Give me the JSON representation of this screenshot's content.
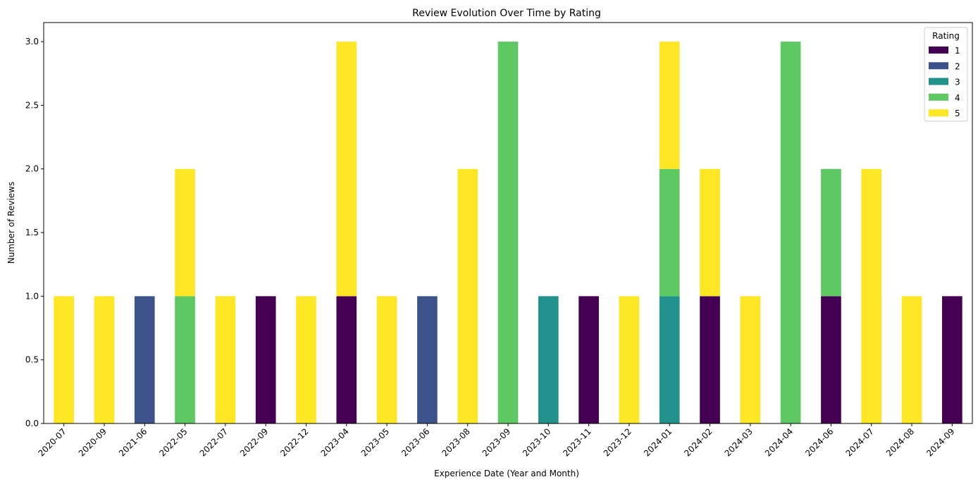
{
  "chart_data": {
    "type": "bar",
    "stacked": true,
    "title": "Review Evolution Over Time by Rating",
    "xlabel": "Experience Date (Year and Month)",
    "ylabel": "Number of Reviews",
    "ylim": [
      0,
      3.15
    ],
    "yticks": [
      "0.0",
      "0.5",
      "1.0",
      "1.5",
      "2.0",
      "2.5",
      "3.0"
    ],
    "grid": false,
    "legend": {
      "title": "Rating",
      "placement": "top-right"
    },
    "categories": [
      "2020-07",
      "2020-09",
      "2021-06",
      "2022-05",
      "2022-07",
      "2022-09",
      "2022-12",
      "2023-04",
      "2023-05",
      "2023-06",
      "2023-08",
      "2023-09",
      "2023-10",
      "2023-11",
      "2023-12",
      "2024-01",
      "2024-02",
      "2024-03",
      "2024-04",
      "2024-06",
      "2024-07",
      "2024-08",
      "2024-09"
    ],
    "series": [
      {
        "name": "1",
        "color": "#440154",
        "values": [
          0,
          0,
          0,
          0,
          0,
          1,
          0,
          1,
          0,
          0,
          0,
          0,
          0,
          1,
          0,
          0,
          1,
          0,
          0,
          1,
          0,
          0,
          1
        ]
      },
      {
        "name": "2",
        "color": "#3b528b",
        "values": [
          0,
          0,
          1,
          0,
          0,
          0,
          0,
          0,
          0,
          1,
          0,
          0,
          0,
          0,
          0,
          0,
          0,
          0,
          0,
          0,
          0,
          0,
          0
        ]
      },
      {
        "name": "3",
        "color": "#21918c",
        "values": [
          0,
          0,
          0,
          0,
          0,
          0,
          0,
          0,
          0,
          0,
          0,
          0,
          1,
          0,
          0,
          1,
          0,
          0,
          0,
          0,
          0,
          0,
          0
        ]
      },
      {
        "name": "4",
        "color": "#5ec962",
        "values": [
          0,
          0,
          0,
          1,
          0,
          0,
          0,
          0,
          0,
          0,
          0,
          3,
          0,
          0,
          0,
          1,
          0,
          0,
          3,
          1,
          0,
          0,
          0
        ]
      },
      {
        "name": "5",
        "color": "#fde725",
        "values": [
          1,
          1,
          0,
          1,
          1,
          0,
          1,
          2,
          1,
          0,
          2,
          0,
          0,
          0,
          1,
          1,
          1,
          1,
          0,
          0,
          2,
          1,
          0
        ]
      }
    ]
  }
}
